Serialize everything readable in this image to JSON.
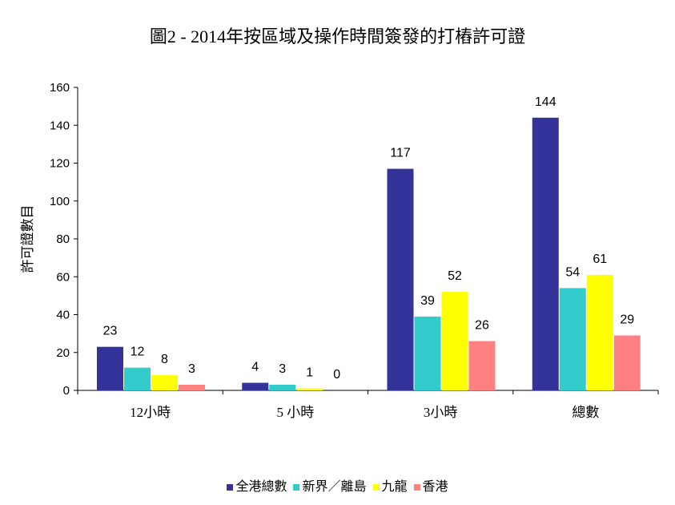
{
  "chart_data": {
    "type": "bar",
    "title": "圖2 - 2014年按區域及操作時間簽發的打樁許可證",
    "xlabel": "",
    "ylabel": "許可證數目",
    "ylim": [
      0,
      160
    ],
    "yticks": [
      0,
      20,
      40,
      60,
      80,
      100,
      120,
      140,
      160
    ],
    "categories": [
      "12小時",
      "5 小時",
      "3小時",
      "總數"
    ],
    "series": [
      {
        "name": "全港總數",
        "color": "#333399",
        "values": [
          23,
          4,
          117,
          144
        ]
      },
      {
        "name": "新界／離島",
        "color": "#33CCCC",
        "values": [
          12,
          3,
          39,
          54
        ]
      },
      {
        "name": "九龍",
        "color": "#FFFF00",
        "values": [
          8,
          1,
          52,
          61
        ]
      },
      {
        "name": "香港",
        "color": "#FF8080",
        "values": [
          3,
          0,
          26,
          29
        ]
      }
    ],
    "grid": false,
    "legend": "bottom"
  }
}
